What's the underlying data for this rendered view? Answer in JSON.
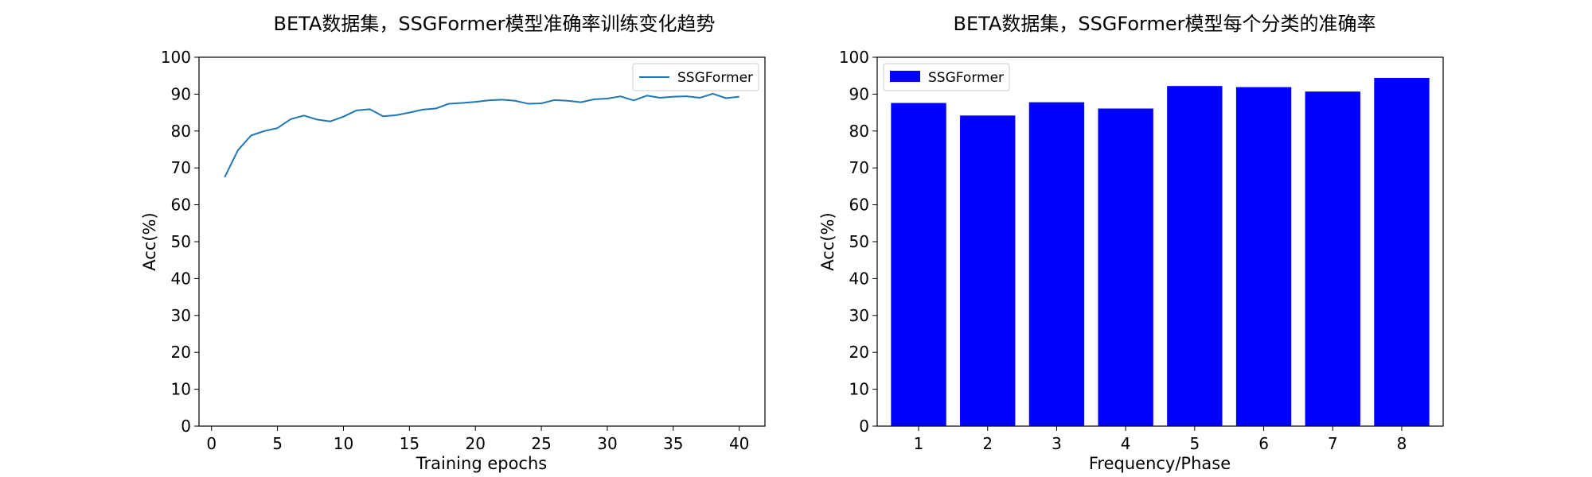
{
  "chart_data": [
    {
      "type": "line",
      "title": "BETA数据集，SSGFormer模型准确率训练变化趋势",
      "xlabel": "Training epochs",
      "ylabel": "Acc(%)",
      "xlim": [
        -0.95,
        41.95
      ],
      "ylim": [
        0,
        100
      ],
      "xticks": [
        0,
        5,
        10,
        15,
        20,
        25,
        30,
        35,
        40
      ],
      "yticks": [
        0,
        10,
        20,
        30,
        40,
        50,
        60,
        70,
        80,
        90,
        100
      ],
      "legend_position": "top-right",
      "series": [
        {
          "name": "SSGFormer",
          "color": "#1f77b4",
          "x": [
            1,
            2,
            3,
            4,
            5,
            6,
            7,
            8,
            9,
            10,
            11,
            12,
            13,
            14,
            15,
            16,
            17,
            18,
            19,
            20,
            21,
            22,
            23,
            24,
            25,
            26,
            27,
            28,
            29,
            30,
            31,
            32,
            33,
            34,
            35,
            36,
            37,
            38,
            39,
            40
          ],
          "y": [
            67.5,
            74.8,
            78.8,
            80.0,
            80.8,
            83.2,
            84.2,
            83.1,
            82.6,
            83.9,
            85.6,
            85.9,
            84.0,
            84.3,
            85.0,
            85.8,
            86.1,
            87.4,
            87.6,
            87.9,
            88.3,
            88.5,
            88.2,
            87.4,
            87.5,
            88.4,
            88.2,
            87.8,
            88.6,
            88.8,
            89.4,
            88.3,
            89.6,
            89.0,
            89.3,
            89.4,
            89.0,
            90.1,
            88.9,
            89.3
          ]
        }
      ]
    },
    {
      "type": "bar",
      "title": "BETA数据集，SSGFormer模型每个分类的准确率",
      "xlabel": "Frequency/Phase",
      "ylabel": "Acc(%)",
      "ylim": [
        0,
        100
      ],
      "yticks": [
        0,
        10,
        20,
        30,
        40,
        50,
        60,
        70,
        80,
        90,
        100
      ],
      "categories": [
        "1",
        "2",
        "3",
        "4",
        "5",
        "6",
        "7",
        "8"
      ],
      "legend_position": "top-left",
      "series": [
        {
          "name": "SSGFormer",
          "color": "#0000ff",
          "values": [
            87.6,
            84.2,
            87.8,
            86.1,
            92.2,
            91.9,
            90.7,
            94.4
          ]
        }
      ]
    }
  ]
}
